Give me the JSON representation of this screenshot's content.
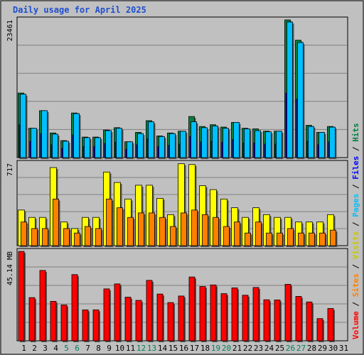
{
  "title": "Daily usage for April 2025",
  "colors": {
    "hits": "#008040",
    "files": "#0000ff",
    "pages": "#00c0ff",
    "visits": "#ffff00",
    "sites": "#ff8000",
    "volume": "#ff0000",
    "weekend_label": "#00805c",
    "day_label": "#000000",
    "panel_bg": "#c0c0c0",
    "grid": "#808080"
  },
  "chart_data": [
    {
      "type": "bar",
      "panel": "hits-files-pages",
      "title": "",
      "xlabel": "",
      "ylabel": "",
      "ymax_label": "23461",
      "ylim": [
        0,
        23461
      ],
      "categories": [
        "1",
        "2",
        "3",
        "4",
        "5",
        "6",
        "7",
        "8",
        "9",
        "10",
        "11",
        "12",
        "13",
        "14",
        "15",
        "16",
        "17",
        "18",
        "19",
        "20",
        "21",
        "22",
        "23",
        "24",
        "25",
        "26",
        "27",
        "28",
        "29",
        "30",
        "31"
      ],
      "weekend_days": [
        "5",
        "6",
        "12",
        "13",
        "19",
        "20",
        "26",
        "27"
      ],
      "series": [
        {
          "name": "Hits",
          "values": [
            11000,
            5000,
            8000,
            4200,
            2900,
            7600,
            3500,
            3500,
            4700,
            5100,
            2700,
            4300,
            6300,
            3700,
            4200,
            4500,
            7000,
            5300,
            5600,
            5200,
            6000,
            5000,
            4900,
            4500,
            4500,
            23460,
            20000,
            5500,
            4300,
            5300,
            0
          ]
        },
        {
          "name": "Files",
          "values": [
            5600,
            2800,
            4100,
            2200,
            1600,
            3900,
            1900,
            1900,
            2400,
            2600,
            1400,
            2200,
            3200,
            1900,
            2100,
            2300,
            3600,
            2700,
            2800,
            2600,
            3100,
            2500,
            2500,
            2300,
            2300,
            11000,
            10000,
            2800,
            2200,
            2700,
            0
          ]
        },
        {
          "name": "Pages",
          "values": [
            10800,
            5000,
            8000,
            4000,
            2800,
            7500,
            3400,
            3400,
            4600,
            5000,
            2700,
            4100,
            6100,
            3600,
            4100,
            4500,
            6100,
            5100,
            5400,
            5000,
            6000,
            4900,
            4600,
            4400,
            4500,
            23100,
            19600,
            5300,
            4300,
            5200,
            0
          ]
        }
      ],
      "grid_lines": 5
    },
    {
      "type": "bar",
      "panel": "visits-sites",
      "title": "",
      "xlabel": "",
      "ylabel": "",
      "ymax_label": "717",
      "ylim": [
        0,
        717
      ],
      "categories": [
        "1",
        "2",
        "3",
        "4",
        "5",
        "6",
        "7",
        "8",
        "9",
        "10",
        "11",
        "12",
        "13",
        "14",
        "15",
        "16",
        "17",
        "18",
        "19",
        "20",
        "21",
        "22",
        "23",
        "24",
        "25",
        "26",
        "27",
        "28",
        "29",
        "30",
        "31"
      ],
      "series": [
        {
          "name": "Visits",
          "values": [
            310,
            246,
            246,
            680,
            206,
            149,
            246,
            246,
            641,
            550,
            406,
            526,
            526,
            412,
            270,
            713,
            706,
            522,
            488,
            406,
            330,
            246,
            330,
            270,
            246,
            246,
            206,
            206,
            206,
            270,
            0
          ]
        },
        {
          "name": "Sites",
          "values": [
            206,
            149,
            149,
            406,
            149,
            110,
            167,
            149,
            406,
            330,
            246,
            285,
            285,
            246,
            167,
            285,
            310,
            270,
            246,
            167,
            206,
            110,
            206,
            110,
            110,
            149,
            110,
            110,
            110,
            135,
            0
          ]
        }
      ],
      "grid_lines": 5
    },
    {
      "type": "bar",
      "panel": "volume",
      "title": "",
      "xlabel": "",
      "ylabel": "",
      "ymax_label": "45.14 MB",
      "ylim": [
        0,
        45.14
      ],
      "categories": [
        "1",
        "2",
        "3",
        "4",
        "5",
        "6",
        "7",
        "8",
        "9",
        "10",
        "11",
        "12",
        "13",
        "14",
        "15",
        "16",
        "17",
        "18",
        "19",
        "20",
        "21",
        "22",
        "23",
        "24",
        "25",
        "26",
        "27",
        "28",
        "29",
        "30",
        "31"
      ],
      "series": [
        {
          "name": "Volume",
          "values": [
            45.1,
            21.8,
            35.5,
            19.9,
            18.1,
            33.4,
            15.6,
            15.6,
            26.2,
            28.7,
            22.0,
            20.4,
            30.5,
            23.6,
            19.3,
            22.6,
            32.2,
            27.4,
            28.2,
            23.8,
            26.7,
            23.0,
            26.9,
            20.7,
            20.6,
            28.5,
            22.4,
            19.6,
            11.2,
            16.3,
            0
          ]
        }
      ],
      "grid_lines": 5
    }
  ],
  "legend": {
    "right_label_parts": [
      {
        "text": "Volume",
        "key": "volume"
      },
      {
        "text": " / ",
        "key": "sep"
      },
      {
        "text": "Sites",
        "key": "sites"
      },
      {
        "text": " / ",
        "key": "sep"
      },
      {
        "text": "Visits",
        "key": "visits"
      },
      {
        "text": " / ",
        "key": "sep"
      },
      {
        "text": "Pages",
        "key": "pages"
      },
      {
        "text": " / ",
        "key": "sep"
      },
      {
        "text": "Files",
        "key": "files"
      },
      {
        "text": " / ",
        "key": "sep"
      },
      {
        "text": "Hits",
        "key": "hits"
      }
    ]
  }
}
